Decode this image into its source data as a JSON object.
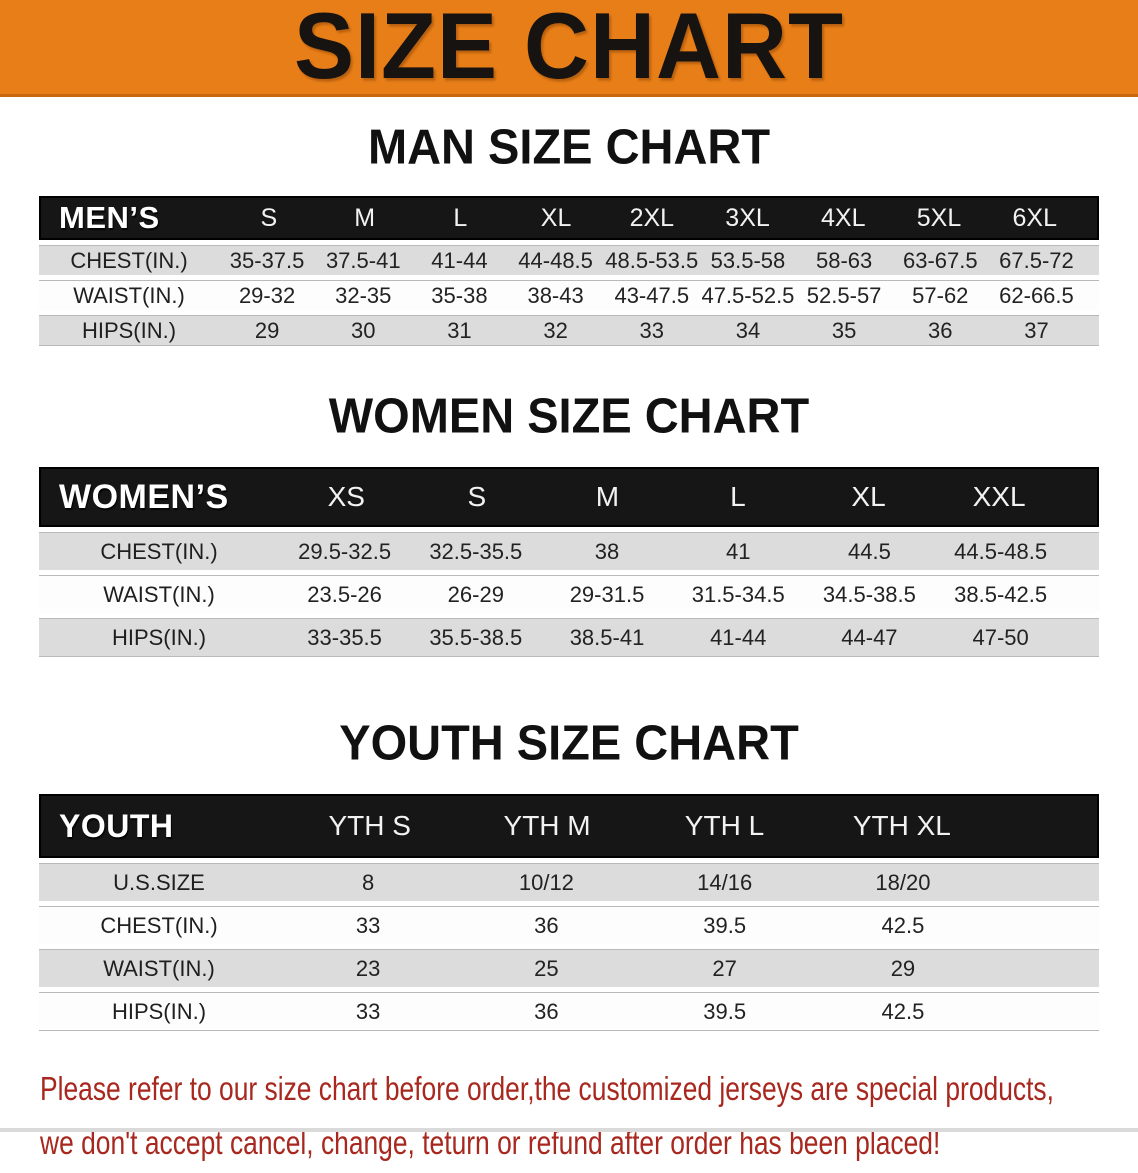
{
  "banner": {
    "title": "SIZE CHART"
  },
  "sections": [
    {
      "heading": "MAN SIZE CHART",
      "table": {
        "header_label": "MEN’S",
        "columns": [
          "S",
          "M",
          "L",
          "XL",
          "2XL",
          "3XL",
          "4XL",
          "5XL",
          "6XL"
        ],
        "rows": [
          {
            "label": "CHEST(IN.)",
            "values": [
              "35-37.5",
              "37.5-41",
              "41-44",
              "44-48.5",
              "48.5-53.5",
              "53.5-58",
              "58-63",
              "63-67.5",
              "67.5-72"
            ]
          },
          {
            "label": "WAIST(IN.)",
            "values": [
              "29-32",
              "32-35",
              "35-38",
              "38-43",
              "43-47.5",
              "47.5-52.5",
              "52.5-57",
              "57-62",
              "62-66.5"
            ]
          },
          {
            "label": "HIPS(IN.)",
            "values": [
              "29",
              "30",
              "31",
              "32",
              "33",
              "34",
              "35",
              "36",
              "37"
            ]
          }
        ]
      }
    },
    {
      "heading": "WOMEN SIZE CHART",
      "table": {
        "header_label": "WOMEN’S",
        "columns": [
          "XS",
          "S",
          "M",
          "L",
          "XL",
          "XXL"
        ],
        "rows": [
          {
            "label": "CHEST(IN.)",
            "values": [
              "29.5-32.5",
              "32.5-35.5",
              "38",
              "41",
              "44.5",
              "44.5-48.5"
            ]
          },
          {
            "label": "WAIST(IN.)",
            "values": [
              "23.5-26",
              "26-29",
              "29-31.5",
              "31.5-34.5",
              "34.5-38.5",
              "38.5-42.5"
            ]
          },
          {
            "label": "HIPS(IN.)",
            "values": [
              "33-35.5",
              "35.5-38.5",
              "38.5-41",
              "41-44",
              "44-47",
              "47-50"
            ]
          }
        ]
      }
    },
    {
      "heading": "YOUTH SIZE CHART",
      "table": {
        "header_label": "YOUTH",
        "columns": [
          "YTH S",
          "YTH M",
          "YTH L",
          "YTH XL"
        ],
        "rows": [
          {
            "label": "U.S.SIZE",
            "values": [
              "8",
              "10/12",
              "14/16",
              "18/20"
            ]
          },
          {
            "label": "CHEST(IN.)",
            "values": [
              "33",
              "36",
              "39.5",
              "42.5"
            ]
          },
          {
            "label": "WAIST(IN.)",
            "values": [
              "23",
              "25",
              "27",
              "29"
            ]
          },
          {
            "label": "HIPS(IN.)",
            "values": [
              "33",
              "36",
              "39.5",
              "42.5"
            ]
          }
        ]
      }
    }
  ],
  "footer": {
    "line1": "Please refer to our size chart before order,the customized jerseys are special products,",
    "line2": "we don't accept cancel, change, teturn or refund after order has been placed!"
  },
  "colors": {
    "banner_bg": "#e87e17",
    "banner_border": "#c9680e",
    "header_band_bg": "#161616",
    "row_stripe": "#dcdcdc",
    "notice_text": "#a8281f"
  }
}
